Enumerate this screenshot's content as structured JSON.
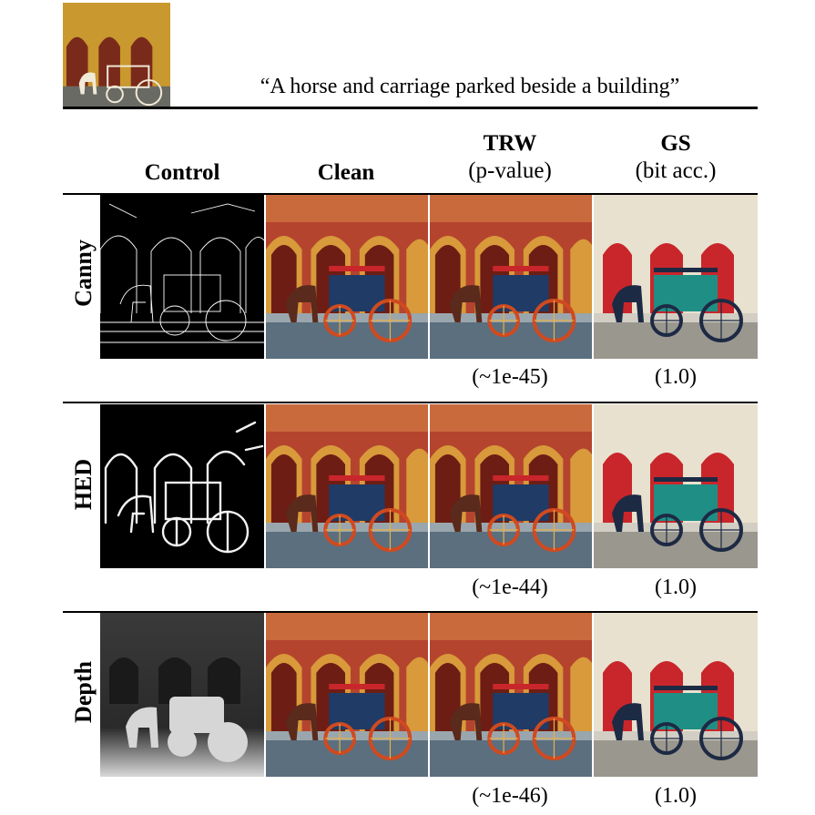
{
  "caption": "“A horse and carriage parked beside a building”",
  "columns": {
    "control": "Control",
    "clean": "Clean",
    "trw_title": "TRW",
    "trw_sub": "(p-value)",
    "gs_title": "GS",
    "gs_sub": "(bit acc.)"
  },
  "rows": [
    {
      "label": "Canny",
      "trw_value": "(~1e-45)",
      "gs_value": "(1.0)"
    },
    {
      "label": "HED",
      "trw_value": "(~1e-44)",
      "gs_value": "(1.0)"
    },
    {
      "label": "Depth",
      "trw_value": "(~1e-46)",
      "gs_value": "(1.0)"
    }
  ],
  "icons": {
    "reference": "reference-photo-icon",
    "control_canny": "canny-edge-map-icon",
    "control_hed": "hed-edge-map-icon",
    "control_depth": "depth-map-icon"
  },
  "colors": {
    "brick": "#b5442e",
    "gold": "#d89a3a",
    "carriage_blue": "#1f3b66",
    "gs_red": "#c8262b",
    "gs_teal": "#1f8f86"
  }
}
